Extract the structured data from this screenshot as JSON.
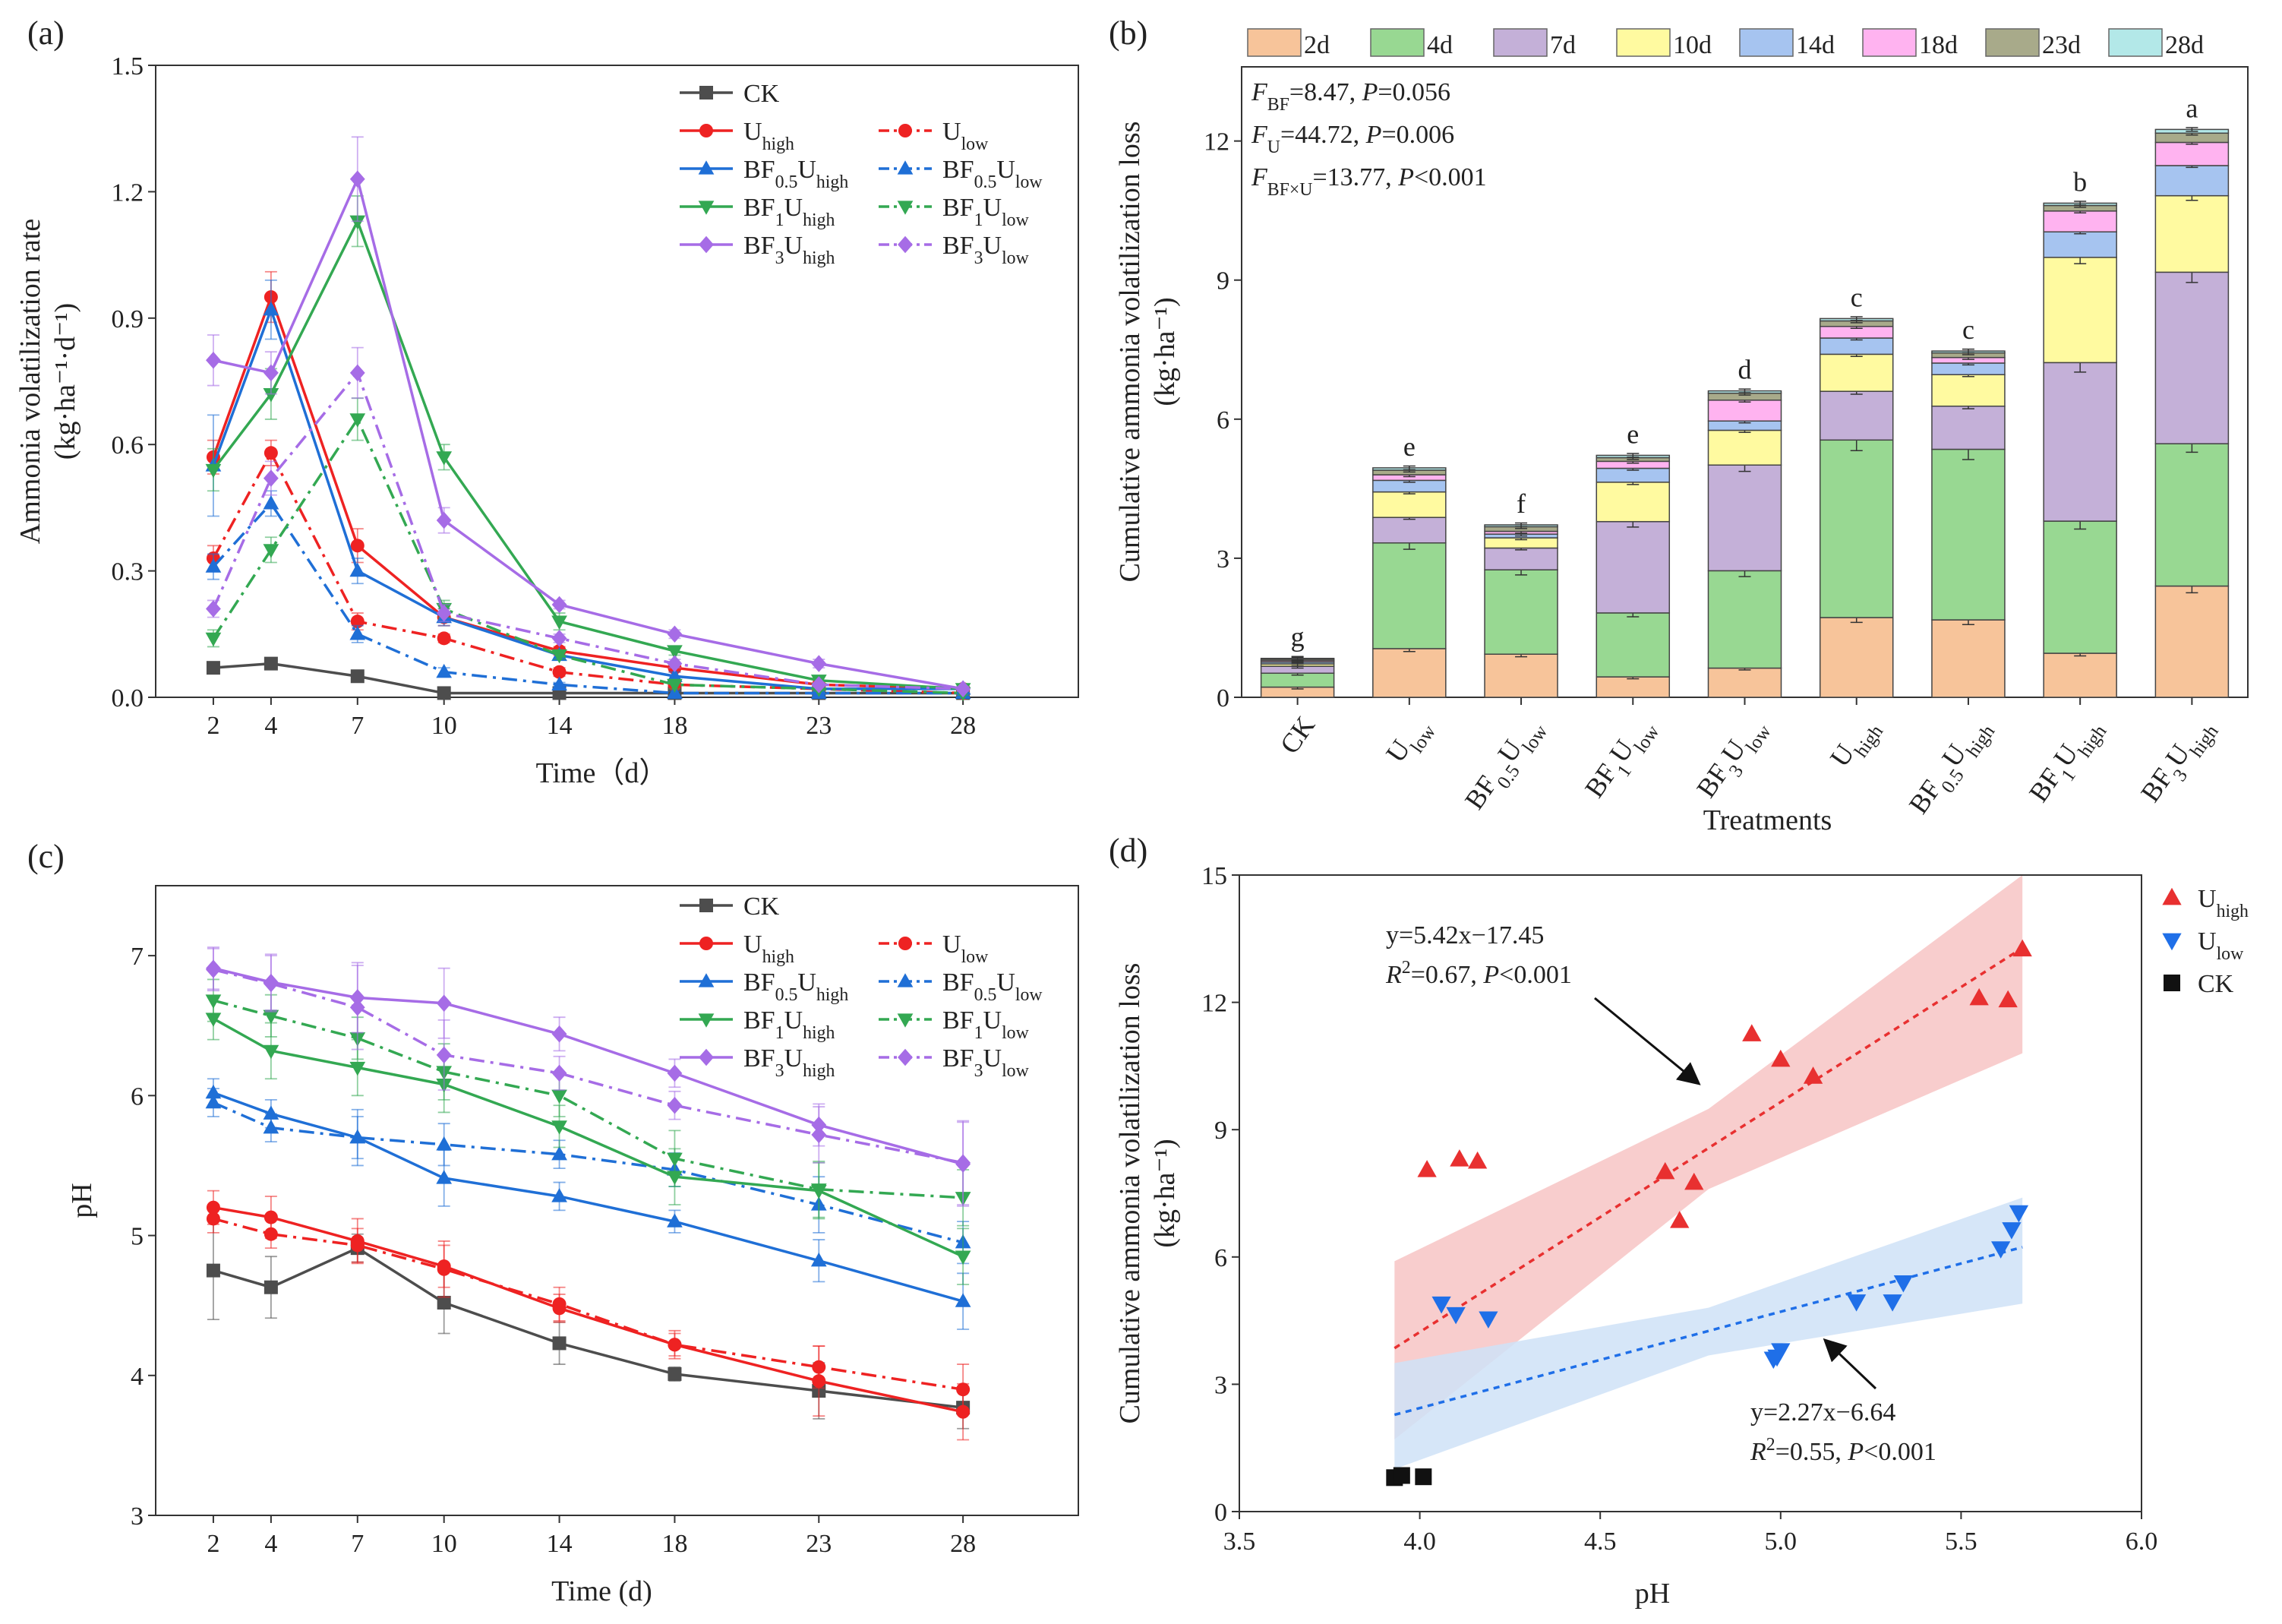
{
  "colors": {
    "CK": "#4d4d4d",
    "U": "#ee2222",
    "BF05": "#1f6fd6",
    "BF1": "#33a852",
    "BF3": "#a66ce6",
    "2d": "#f7c49a",
    "4d": "#98d892",
    "7d": "#c4b0d8",
    "10d": "#fffaa0",
    "14d": "#a6c4f0",
    "18d": "#ffb3f0",
    "23d": "#a8aa8a",
    "28d": "#b3e8e8",
    "uhigh_pt": "#e83030",
    "ulow_pt": "#1f6fe8",
    "ck_pt": "#111111",
    "uhigh_band": "#f7c4c4",
    "ulow_band": "#cfe2f7"
  },
  "series_legend": [
    {
      "key": "CK",
      "label": "CK",
      "sub": "",
      "line": "solid",
      "marker": "square"
    },
    {
      "key": "U",
      "label": "U",
      "sub": "high",
      "line": "solid",
      "marker": "circle"
    },
    {
      "key": "U",
      "label": "U",
      "sub": "low",
      "line": "dashdot",
      "marker": "circle"
    },
    {
      "key": "BF05",
      "label": "BF",
      "sub": "0.5",
      "label2": "U",
      "sub2": "high",
      "line": "solid",
      "marker": "tri-up"
    },
    {
      "key": "BF05",
      "label": "BF",
      "sub": "0.5",
      "label2": "U",
      "sub2": "low",
      "line": "dashdot",
      "marker": "tri-up"
    },
    {
      "key": "BF1",
      "label": "BF",
      "sub": "1",
      "label2": "U",
      "sub2": "high",
      "line": "solid",
      "marker": "tri-down"
    },
    {
      "key": "BF1",
      "label": "BF",
      "sub": "1",
      "label2": "U",
      "sub2": "low",
      "line": "dashdot",
      "marker": "tri-down"
    },
    {
      "key": "BF3",
      "label": "BF",
      "sub": "3",
      "label2": "U",
      "sub2": "high",
      "line": "solid",
      "marker": "diamond"
    },
    {
      "key": "BF3",
      "label": "BF",
      "sub": "3",
      "label2": "U",
      "sub2": "low",
      "line": "dashdot",
      "marker": "diamond"
    }
  ],
  "chart_data": [
    {
      "panel": "(a)",
      "type": "line",
      "xlabel": "Time（d）",
      "ylabel_line1": "Ammonia volatilization rate",
      "ylabel_line2": "(kg·ha⁻¹·d⁻¹)",
      "x": [
        2,
        4,
        7,
        10,
        14,
        18,
        23,
        28
      ],
      "xticks": [
        "2",
        "4",
        "7",
        "10",
        "14",
        "18",
        "23",
        "28"
      ],
      "ylim": [
        0,
        1.5
      ],
      "yticks": [
        "0.0",
        "0.3",
        "0.6",
        "0.9",
        "1.2",
        "1.5"
      ],
      "series": [
        {
          "name": "CK",
          "key": "CK",
          "line": "solid",
          "marker": "square",
          "values": [
            0.07,
            0.08,
            0.05,
            0.01,
            0.01,
            0.01,
            0.01,
            0.01
          ],
          "err": [
            0.01,
            0.01,
            0.01,
            0.005,
            0.005,
            0.005,
            0.005,
            0.005
          ]
        },
        {
          "name": "Uhigh",
          "key": "U",
          "line": "solid",
          "marker": "circle",
          "values": [
            0.57,
            0.95,
            0.36,
            0.19,
            0.11,
            0.07,
            0.03,
            0.02
          ],
          "err": [
            0.04,
            0.06,
            0.04,
            0.02,
            0.01,
            0.01,
            0.01,
            0.005
          ]
        },
        {
          "name": "Ulow",
          "key": "U",
          "line": "dashdot",
          "marker": "circle",
          "values": [
            0.33,
            0.58,
            0.18,
            0.14,
            0.06,
            0.03,
            0.02,
            0.01
          ],
          "err": [
            0.03,
            0.03,
            0.02,
            0.01,
            0.01,
            0.01,
            0.005,
            0.005
          ]
        },
        {
          "name": "BF0.5Uhigh",
          "key": "BF05",
          "line": "solid",
          "marker": "tri-up",
          "values": [
            0.55,
            0.92,
            0.3,
            0.19,
            0.1,
            0.05,
            0.02,
            0.02
          ],
          "err": [
            0.12,
            0.07,
            0.03,
            0.02,
            0.01,
            0.01,
            0.005,
            0.005
          ]
        },
        {
          "name": "BF0.5Ulow",
          "key": "BF05",
          "line": "dashdot",
          "marker": "tri-up",
          "values": [
            0.31,
            0.46,
            0.15,
            0.06,
            0.03,
            0.01,
            0.01,
            0.01
          ],
          "err": [
            0.03,
            0.03,
            0.02,
            0.01,
            0.005,
            0.005,
            0.005,
            0.005
          ]
        },
        {
          "name": "BF1Uhigh",
          "key": "BF1",
          "line": "solid",
          "marker": "tri-down",
          "values": [
            0.54,
            0.72,
            1.13,
            0.57,
            0.18,
            0.11,
            0.04,
            0.02
          ],
          "err": [
            0.05,
            0.06,
            0.06,
            0.03,
            0.02,
            0.01,
            0.01,
            0.005
          ]
        },
        {
          "name": "BF1Ulow",
          "key": "BF1",
          "line": "dashdot",
          "marker": "tri-down",
          "values": [
            0.14,
            0.35,
            0.66,
            0.21,
            0.1,
            0.03,
            0.02,
            0.01
          ],
          "err": [
            0.02,
            0.03,
            0.05,
            0.02,
            0.01,
            0.01,
            0.005,
            0.005
          ]
        },
        {
          "name": "BF3Uhigh",
          "key": "BF3",
          "line": "solid",
          "marker": "diamond",
          "values": [
            0.8,
            0.77,
            1.23,
            0.42,
            0.22,
            0.15,
            0.08,
            0.02
          ],
          "err": [
            0.06,
            0.05,
            0.1,
            0.03,
            0.01,
            0.01,
            0.01,
            0.005
          ]
        },
        {
          "name": "BF3Ulow",
          "key": "BF3",
          "line": "dashdot",
          "marker": "diamond",
          "values": [
            0.21,
            0.52,
            0.77,
            0.2,
            0.14,
            0.08,
            0.03,
            0.02
          ],
          "err": [
            0.02,
            0.04,
            0.06,
            0.02,
            0.01,
            0.01,
            0.005,
            0.005
          ]
        }
      ]
    },
    {
      "panel": "(b)",
      "type": "bar",
      "stacked": true,
      "xlabel": "Treatments",
      "ylabel_line1": "Cumulative ammonia volatilization loss",
      "ylabel_line2": "(kg·ha⁻¹)",
      "ylim": [
        0,
        13.6
      ],
      "yticks": [
        "0",
        "3",
        "6",
        "9",
        "12"
      ],
      "categories": [
        {
          "main": "CK",
          "sub": "",
          "main2": "",
          "sub2": ""
        },
        {
          "main": "U",
          "sub": "low",
          "main2": "",
          "sub2": ""
        },
        {
          "main": "BF",
          "sub": "0.5",
          "main2": "U",
          "sub2": "low"
        },
        {
          "main": "BF",
          "sub": "1",
          "main2": "U",
          "sub2": "low"
        },
        {
          "main": "BF",
          "sub": "3",
          "main2": "U",
          "sub2": "low"
        },
        {
          "main": "U",
          "sub": "high",
          "main2": "",
          "sub2": ""
        },
        {
          "main": "BF",
          "sub": "0.5",
          "main2": "U",
          "sub2": "high"
        },
        {
          "main": "BF",
          "sub": "1",
          "main2": "U",
          "sub2": "high"
        },
        {
          "main": "BF",
          "sub": "3",
          "main2": "U",
          "sub2": "high"
        }
      ],
      "letters": [
        "g",
        "e",
        "f",
        "e",
        "d",
        "c",
        "c",
        "b",
        "a"
      ],
      "legend": [
        "2d",
        "4d",
        "7d",
        "10d",
        "14d",
        "18d",
        "23d",
        "28d"
      ],
      "series": [
        {
          "name": "2d",
          "values": [
            0.22,
            1.05,
            0.93,
            0.44,
            0.63,
            1.72,
            1.67,
            0.95,
            2.4
          ]
        },
        {
          "name": "4d",
          "values": [
            0.3,
            2.28,
            1.82,
            1.38,
            2.1,
            3.83,
            3.68,
            2.85,
            3.07
          ]
        },
        {
          "name": "7d",
          "values": [
            0.15,
            0.55,
            0.47,
            1.97,
            2.28,
            1.05,
            0.93,
            3.42,
            3.7
          ]
        },
        {
          "name": "10d",
          "values": [
            0.05,
            0.55,
            0.22,
            0.85,
            0.75,
            0.8,
            0.68,
            2.27,
            1.65
          ]
        },
        {
          "name": "14d",
          "values": [
            0.04,
            0.25,
            0.08,
            0.3,
            0.2,
            0.35,
            0.25,
            0.55,
            0.65
          ]
        },
        {
          "name": "18d",
          "values": [
            0.03,
            0.12,
            0.06,
            0.15,
            0.45,
            0.25,
            0.12,
            0.45,
            0.5
          ]
        },
        {
          "name": "23d",
          "values": [
            0.03,
            0.1,
            0.1,
            0.08,
            0.15,
            0.12,
            0.1,
            0.12,
            0.2
          ]
        },
        {
          "name": "28d",
          "values": [
            0.02,
            0.05,
            0.04,
            0.05,
            0.05,
            0.05,
            0.04,
            0.05,
            0.08
          ]
        }
      ],
      "annotations": [
        {
          "f": "F",
          "sub": "BF",
          "rest": "=8.47, ",
          "p": "P",
          "prest": "=0.056"
        },
        {
          "f": "F",
          "sub": "U",
          "rest": "=44.72, ",
          "p": "P",
          "prest": "=0.006"
        },
        {
          "f": "F",
          "sub": "BF×U",
          "rest": "=13.77, ",
          "p": "P",
          "prest": "<0.001"
        }
      ]
    },
    {
      "panel": "(c)",
      "type": "line",
      "xlabel": "Time (d)",
      "ylabel": "pH",
      "x": [
        2,
        4,
        7,
        10,
        14,
        18,
        23,
        28
      ],
      "xticks": [
        "2",
        "4",
        "7",
        "10",
        "14",
        "18",
        "23",
        "28"
      ],
      "ylim": [
        3,
        7.5
      ],
      "yticks": [
        "3",
        "4",
        "5",
        "6",
        "7"
      ],
      "series": [
        {
          "name": "CK",
          "key": "CK",
          "line": "solid",
          "marker": "square",
          "values": [
            4.75,
            4.63,
            4.91,
            4.52,
            4.23,
            4.01,
            3.89,
            3.77
          ],
          "err": [
            0.35,
            0.22,
            0.1,
            0.22,
            0.15,
            0.05,
            0.2,
            0.15
          ]
        },
        {
          "name": "Uhigh",
          "key": "U",
          "line": "solid",
          "marker": "circle",
          "values": [
            5.2,
            5.13,
            4.96,
            4.78,
            4.48,
            4.22,
            3.96,
            3.74
          ],
          "err": [
            0.12,
            0.15,
            0.16,
            0.15,
            0.1,
            0.1,
            0.25,
            0.2
          ]
        },
        {
          "name": "Ulow",
          "key": "U",
          "line": "dashdot",
          "marker": "circle",
          "values": [
            5.12,
            5.01,
            4.93,
            4.76,
            4.51,
            4.22,
            4.06,
            3.9
          ],
          "err": [
            0.1,
            0.1,
            0.12,
            0.2,
            0.12,
            0.08,
            0.15,
            0.18
          ]
        },
        {
          "name": "BF0.5Uhigh",
          "key": "BF05",
          "line": "solid",
          "marker": "tri-up",
          "values": [
            6.02,
            5.87,
            5.7,
            5.41,
            5.28,
            5.1,
            4.82,
            4.53
          ],
          "err": [
            0.1,
            0.1,
            0.2,
            0.2,
            0.1,
            0.08,
            0.15,
            0.2
          ]
        },
        {
          "name": "BF0.5Ulow",
          "key": "BF05",
          "line": "dashdot",
          "marker": "tri-up",
          "values": [
            5.95,
            5.77,
            5.7,
            5.65,
            5.58,
            5.47,
            5.22,
            4.95
          ],
          "err": [
            0.1,
            0.1,
            0.15,
            0.15,
            0.1,
            0.12,
            0.2,
            0.15
          ]
        },
        {
          "name": "BF1Uhigh",
          "key": "BF1",
          "line": "solid",
          "marker": "tri-down",
          "values": [
            6.55,
            6.32,
            6.2,
            6.08,
            5.78,
            5.42,
            5.32,
            4.85
          ],
          "err": [
            0.15,
            0.2,
            0.2,
            0.2,
            0.15,
            0.2,
            0.2,
            0.2
          ]
        },
        {
          "name": "BF1Ulow",
          "key": "BF1",
          "line": "dashdot",
          "marker": "tri-down",
          "values": [
            6.68,
            6.57,
            6.41,
            6.17,
            6.0,
            5.55,
            5.33,
            5.27
          ],
          "err": [
            0.15,
            0.15,
            0.15,
            0.2,
            0.15,
            0.2,
            0.2,
            0.2
          ]
        },
        {
          "name": "BF3Uhigh",
          "key": "BF3",
          "line": "solid",
          "marker": "diamond",
          "values": [
            6.91,
            6.81,
            6.7,
            6.66,
            6.44,
            6.16,
            5.79,
            5.51
          ],
          "err": [
            0.15,
            0.2,
            0.25,
            0.25,
            0.12,
            0.1,
            0.15,
            0.3
          ]
        },
        {
          "name": "BF3Ulow",
          "key": "BF3",
          "line": "dashdot",
          "marker": "diamond",
          "values": [
            6.9,
            6.8,
            6.63,
            6.29,
            6.16,
            5.93,
            5.72,
            5.52
          ],
          "err": [
            0.15,
            0.2,
            0.3,
            0.25,
            0.12,
            0.1,
            0.2,
            0.3
          ]
        }
      ]
    },
    {
      "panel": "(d)",
      "type": "scatter",
      "xlabel": "pH",
      "ylabel_line1": "Cumulative ammonia volatilization loss",
      "ylabel_line2": "(kg·ha⁻¹)",
      "xlim": [
        3.5,
        6.0
      ],
      "ylim": [
        0,
        15
      ],
      "xticks": [
        "3.5",
        "4.0",
        "4.5",
        "5.0",
        "5.5",
        "6.0"
      ],
      "yticks": [
        "0",
        "3",
        "6",
        "9",
        "12",
        "15"
      ],
      "legend": [
        {
          "label": "U",
          "sub": "high",
          "marker": "tri-up",
          "color": "#e83030"
        },
        {
          "label": "U",
          "sub": "low",
          "marker": "tri-down",
          "color": "#1f6fe8"
        },
        {
          "label": "CK",
          "sub": "",
          "marker": "square",
          "color": "#111111"
        }
      ],
      "series": [
        {
          "name": "Uhigh",
          "marker": "tri-up",
          "points": [
            [
              4.02,
              8.05
            ],
            [
              4.11,
              8.3
            ],
            [
              4.16,
              8.25
            ],
            [
              4.68,
              8.0
            ],
            [
              4.72,
              6.85
            ],
            [
              4.76,
              7.75
            ],
            [
              4.92,
              11.25
            ],
            [
              5.0,
              10.65
            ],
            [
              5.09,
              10.25
            ],
            [
              5.55,
              12.1
            ],
            [
              5.63,
              12.05
            ],
            [
              5.67,
              13.25
            ]
          ]
        },
        {
          "name": "Ulow",
          "marker": "tri-down",
          "points": [
            [
              4.06,
              4.9
            ],
            [
              4.1,
              4.65
            ],
            [
              4.19,
              4.55
            ],
            [
              4.98,
              3.6
            ],
            [
              5.0,
              3.8
            ],
            [
              4.99,
              3.65
            ],
            [
              5.21,
              4.95
            ],
            [
              5.31,
              4.95
            ],
            [
              5.34,
              5.4
            ],
            [
              5.61,
              6.2
            ],
            [
              5.64,
              6.65
            ],
            [
              5.66,
              7.05
            ]
          ]
        },
        {
          "name": "CK",
          "marker": "square",
          "points": [
            [
              3.93,
              0.8
            ],
            [
              3.95,
              0.85
            ],
            [
              4.01,
              0.82
            ]
          ]
        }
      ],
      "fits": [
        {
          "name": "Uhigh",
          "slope": 5.42,
          "intercept": -17.45,
          "xrange": [
            3.93,
            5.67
          ],
          "band_lo_start": 1.7,
          "band_hi_start": 5.9,
          "band_lo_end": 10.8,
          "band_hi_end": 15.0
        },
        {
          "name": "Ulow",
          "slope": 2.27,
          "intercept": -6.64,
          "xrange": [
            3.93,
            5.67
          ],
          "band_lo_start": 1.0,
          "band_hi_start": 3.5,
          "band_lo_end": 4.9,
          "band_hi_end": 7.4
        }
      ],
      "equations": [
        {
          "eq": "y=5.42x−17.45",
          "r2_pre": "R",
          "r2_sup": "2",
          "r2_rest": "=0.67, ",
          "p": "P",
          "prest": "<0.001"
        },
        {
          "eq": "y=2.27x−6.64",
          "r2_pre": "R",
          "r2_sup": "2",
          "r2_rest": "=0.55, ",
          "p": "P",
          "prest": "<0.001"
        }
      ]
    }
  ]
}
